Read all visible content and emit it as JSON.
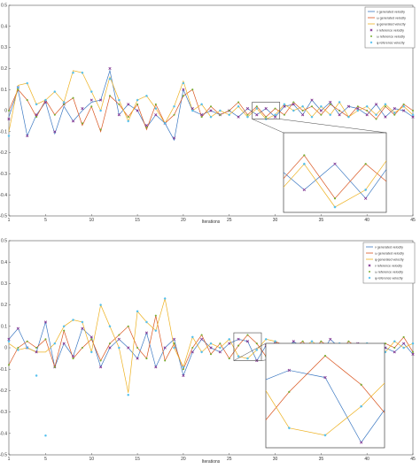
{
  "chart_data": [
    {
      "type": "line",
      "xlabel": "Iterations",
      "ylabel": "",
      "xlim": [
        1,
        45
      ],
      "ylim": [
        -0.5,
        0.5
      ],
      "x_ticks": [
        1,
        5,
        10,
        15,
        20,
        25,
        30,
        35,
        40,
        45
      ],
      "y_ticks": [
        0.5,
        0.4,
        0.3,
        0.2,
        0.1,
        0,
        -0.1,
        -0.2,
        -0.3,
        -0.4,
        -0.5
      ],
      "legend_position": "top-right",
      "zoom_box": {
        "x": [
          27.5,
          30.5
        ],
        "y": [
          -0.04,
          0.04
        ]
      },
      "x": [
        1,
        2,
        3,
        4,
        5,
        6,
        7,
        8,
        9,
        10,
        11,
        12,
        13,
        14,
        15,
        16,
        17,
        18,
        19,
        20,
        21,
        22,
        23,
        24,
        25,
        26,
        27,
        28,
        29,
        30,
        31,
        32,
        33,
        34,
        35,
        36,
        37,
        38,
        39,
        40,
        41,
        42,
        43,
        44,
        45
      ],
      "series": [
        {
          "name": "v generated velocity",
          "kind": "line",
          "color": "#3b78c2",
          "values": [
            -0.03,
            0.1,
            -0.12,
            -0.02,
            0.04,
            -0.11,
            0.02,
            -0.05,
            0.0,
            0.04,
            0.05,
            0.19,
            -0.02,
            0.03,
            0.0,
            -0.08,
            -0.02,
            -0.06,
            -0.14,
            0.1,
            0.0,
            -0.02,
            0.0,
            -0.02,
            0.0,
            -0.03,
            0.01,
            -0.02,
            0.01,
            -0.03,
            0.02,
            0.03,
            -0.02,
            0.05,
            0.0,
            0.04,
            -0.02,
            0.02,
            0.01,
            -0.02,
            0.03,
            -0.03,
            0.01,
            0.0,
            -0.03
          ]
        },
        {
          "name": "ω generated velocity",
          "kind": "line",
          "color": "#d9541e",
          "values": [
            0.0,
            0.1,
            0.05,
            -0.03,
            0.05,
            -0.02,
            0.03,
            0.06,
            -0.07,
            0.02,
            -0.1,
            0.07,
            0.03,
            -0.03,
            0.03,
            -0.09,
            0.03,
            -0.06,
            -0.02,
            0.07,
            0.1,
            -0.03,
            0.02,
            -0.02,
            0.0,
            0.04,
            -0.02,
            0.02,
            -0.03,
            0.01,
            -0.02,
            0.04,
            0.0,
            0.02,
            -0.02,
            0.03,
            0.0,
            -0.03,
            0.02,
            0.0,
            -0.04,
            0.02,
            -0.02,
            0.03,
            0.0
          ]
        },
        {
          "name": "φ generated velocity",
          "kind": "line",
          "color": "#edb120",
          "values": [
            -0.1,
            0.12,
            0.13,
            0.03,
            0.05,
            0.09,
            0.04,
            0.19,
            0.18,
            0.09,
            0.0,
            0.16,
            0.05,
            -0.05,
            0.05,
            0.07,
            0.01,
            -0.06,
            0.02,
            0.14,
            0.0,
            0.03,
            -0.03,
            0.0,
            -0.02,
            0.02,
            -0.03,
            0.01,
            -0.04,
            -0.02,
            0.03,
            0.0,
            0.02,
            -0.03,
            0.02,
            -0.02,
            0.04,
            -0.03,
            0.0,
            0.02,
            -0.02,
            0.03,
            -0.01,
            0.02,
            -0.02
          ]
        },
        {
          "name": "v reference velocity",
          "kind": "marker",
          "marker": "x",
          "color": "#7e2f8e",
          "values": [
            -0.04,
            0.11,
            -0.12,
            -0.02,
            0.04,
            -0.1,
            0.03,
            -0.05,
            0.01,
            0.05,
            0.05,
            0.2,
            -0.02,
            0.03,
            0.0,
            -0.07,
            -0.02,
            -0.06,
            -0.13,
            0.1,
            0.01,
            -0.02,
            0.0,
            -0.02,
            0.0,
            -0.03,
            0.01,
            -0.02,
            0.01,
            -0.03,
            0.02,
            0.03,
            -0.02,
            0.05,
            0.0,
            0.04,
            -0.02,
            0.02,
            0.01,
            -0.02,
            0.03,
            -0.03,
            0.01,
            0.0,
            -0.03
          ]
        },
        {
          "name": "ω reference velocity",
          "kind": "marker",
          "marker": "dot",
          "color": "#77ac30",
          "values": [
            0.0,
            0.1,
            0.05,
            -0.03,
            0.05,
            -0.02,
            0.03,
            0.06,
            -0.06,
            0.02,
            -0.09,
            0.07,
            0.03,
            -0.03,
            0.03,
            -0.08,
            0.03,
            -0.06,
            -0.02,
            0.07,
            0.1,
            -0.03,
            0.02,
            -0.02,
            0.0,
            0.04,
            -0.02,
            0.02,
            -0.03,
            0.01,
            -0.02,
            0.04,
            0.0,
            0.02,
            -0.02,
            0.03,
            0.0,
            -0.03,
            0.02,
            0.0,
            -0.04,
            0.02,
            -0.02,
            0.03,
            0.0
          ]
        },
        {
          "name": "φ reference velocity",
          "kind": "marker",
          "marker": "star",
          "color": "#4dbeee",
          "values": [
            -0.12,
            0.11,
            0.13,
            0.03,
            0.05,
            0.09,
            0.04,
            0.18,
            0.18,
            0.09,
            0.0,
            0.15,
            0.05,
            -0.05,
            0.05,
            0.07,
            0.01,
            -0.06,
            0.02,
            0.13,
            0.0,
            0.03,
            -0.03,
            0.0,
            -0.02,
            0.02,
            -0.03,
            0.01,
            -0.04,
            -0.02,
            0.03,
            0.0,
            0.02,
            -0.03,
            0.02,
            -0.02,
            0.04,
            -0.03,
            0.0,
            0.02,
            -0.02,
            0.03,
            -0.01,
            0.02,
            -0.02
          ]
        }
      ]
    },
    {
      "type": "line",
      "xlabel": "Iterations",
      "ylabel": "",
      "xlim": [
        1,
        45
      ],
      "ylim": [
        -0.5,
        0.5
      ],
      "x_ticks": [
        1,
        5,
        10,
        15,
        20,
        25,
        30,
        35,
        40,
        45
      ],
      "y_ticks": [
        0.5,
        0.4,
        0.3,
        0.2,
        0.1,
        0,
        -0.1,
        -0.2,
        -0.3,
        -0.4,
        -0.5
      ],
      "legend_position": "top-right",
      "zoom_box": {
        "x": [
          25.5,
          28.5
        ],
        "y": [
          -0.06,
          0.07
        ]
      },
      "x": [
        1,
        2,
        3,
        4,
        5,
        6,
        7,
        8,
        9,
        10,
        11,
        12,
        13,
        14,
        15,
        16,
        17,
        18,
        19,
        20,
        21,
        22,
        23,
        24,
        25,
        26,
        27,
        28,
        29,
        30,
        31,
        32,
        33,
        34,
        35,
        36,
        37,
        38,
        39,
        40,
        41,
        42,
        43,
        44,
        45
      ],
      "series": [
        {
          "name": "v generated velocity",
          "kind": "line",
          "color": "#3b78c2",
          "values": [
            0.04,
            0.09,
            0.0,
            -0.02,
            0.12,
            -0.09,
            0.02,
            -0.04,
            0.09,
            0.05,
            -0.09,
            0.0,
            0.04,
            0.0,
            -0.05,
            0.07,
            -0.09,
            0.0,
            0.04,
            -0.13,
            -0.02,
            0.04,
            0.0,
            -0.02,
            0.02,
            0.04,
            0.03,
            -0.06,
            0.01,
            0.02,
            -0.02,
            0.03,
            0.0,
            0.01,
            -0.03,
            0.04,
            0.0,
            -0.02,
            0.02,
            -0.03,
            0.01,
            0.0,
            -0.02,
            0.02,
            -0.03
          ]
        },
        {
          "name": "ω generated velocity",
          "kind": "line",
          "color": "#d9541e",
          "values": [
            -0.08,
            0.0,
            0.03,
            0.0,
            0.04,
            -0.09,
            0.08,
            -0.05,
            0.0,
            0.04,
            -0.06,
            0.02,
            0.06,
            0.1,
            0.0,
            -0.05,
            0.15,
            -0.06,
            0.02,
            -0.1,
            0.0,
            0.06,
            -0.03,
            0.02,
            -0.05,
            0.01,
            0.06,
            0.02,
            -0.04,
            0.03,
            0.01,
            0.0,
            0.03,
            -0.02,
            0.03,
            0.0,
            -0.02,
            0.03,
            0.0,
            0.02,
            -0.03,
            0.02,
            0.0,
            0.05,
            -0.02
          ]
        },
        {
          "name": "φ generated velocity",
          "kind": "line",
          "color": "#edb120",
          "values": [
            0.02,
            -0.01,
            0.0,
            -0.02,
            -0.02,
            0.02,
            0.1,
            0.13,
            0.12,
            -0.02,
            0.2,
            0.1,
            0.0,
            -0.21,
            0.17,
            0.12,
            0.08,
            0.23,
            0.0,
            -0.09,
            0.05,
            -0.02,
            0.02,
            0.0,
            0.04,
            -0.04,
            -0.05,
            -0.01,
            0.04,
            0.03,
            -0.02,
            0.02,
            0.0,
            0.03,
            0.0,
            -0.02,
            0.02,
            0.0,
            -0.03,
            0.02,
            0.0,
            -0.02,
            0.03,
            0.0,
            0.02
          ]
        },
        {
          "name": "v reference velocity",
          "kind": "marker",
          "marker": "x",
          "color": "#7e2f8e",
          "values": [
            0.04,
            0.09,
            0.0,
            -0.02,
            0.12,
            -0.09,
            0.02,
            -0.04,
            0.09,
            0.05,
            -0.09,
            0.0,
            0.04,
            0.0,
            -0.05,
            0.07,
            -0.09,
            0.0,
            0.04,
            -0.13,
            -0.02,
            0.04,
            0.0,
            -0.02,
            0.02,
            0.04,
            0.03,
            -0.06,
            0.01,
            0.02,
            -0.02,
            0.03,
            0.0,
            0.01,
            -0.03,
            0.04,
            0.0,
            -0.02,
            0.02,
            -0.03,
            0.01,
            0.0,
            -0.02,
            0.02,
            -0.03
          ]
        },
        {
          "name": "ω reference velocity",
          "kind": "marker",
          "marker": "dot",
          "color": "#77ac30",
          "values": [
            -0.08,
            0.0,
            0.03,
            0.0,
            0.04,
            -0.09,
            0.08,
            -0.05,
            0.0,
            0.04,
            -0.06,
            0.02,
            0.06,
            0.1,
            0.0,
            -0.05,
            0.15,
            -0.06,
            0.02,
            -0.1,
            0.0,
            0.06,
            -0.03,
            0.02,
            -0.05,
            0.01,
            0.06,
            0.02,
            -0.04,
            0.03,
            0.01,
            0.0,
            0.03,
            -0.02,
            0.03,
            0.0,
            -0.02,
            0.03,
            0.0,
            0.02,
            -0.03,
            0.02,
            0.0,
            0.05,
            -0.02
          ]
        },
        {
          "name": "φ reference velocity",
          "kind": "marker",
          "marker": "star",
          "color": "#4dbeee",
          "values": [
            0.03,
            -0.01,
            0.0,
            -0.13,
            -0.41,
            0.02,
            0.1,
            0.13,
            0.12,
            -0.02,
            0.2,
            0.1,
            0.0,
            -0.22,
            0.17,
            0.12,
            0.08,
            0.23,
            0.0,
            -0.09,
            0.05,
            -0.02,
            0.02,
            0.0,
            0.04,
            -0.04,
            -0.05,
            -0.01,
            0.04,
            0.03,
            -0.02,
            0.02,
            0.0,
            0.03,
            0.0,
            -0.02,
            0.02,
            0.0,
            -0.03,
            0.02,
            0.0,
            -0.02,
            0.03,
            0.0,
            0.02
          ]
        }
      ]
    }
  ]
}
